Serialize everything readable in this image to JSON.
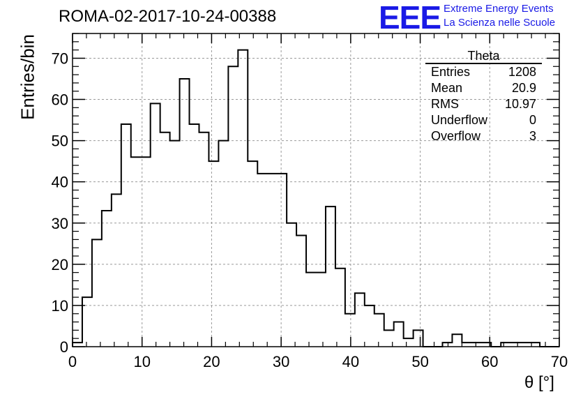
{
  "title": "ROMA-02-2017-10-24-00388",
  "logo": {
    "mark": "EEE",
    "line1": "Extreme Energy Events",
    "line2": "La Scienza nelle Scuole"
  },
  "stats": {
    "name": "Theta",
    "rows": [
      {
        "label": "Entries",
        "value": "1208"
      },
      {
        "label": "Mean",
        "value": "20.9"
      },
      {
        "label": "RMS",
        "value": "10.97"
      },
      {
        "label": "Underflow",
        "value": "0"
      },
      {
        "label": "Overflow",
        "value": "3"
      }
    ]
  },
  "chart_data": {
    "type": "histogram",
    "xlabel": "θ [°]",
    "ylabel": "Entries/bin",
    "xlim": [
      0,
      70
    ],
    "ylim": [
      0,
      76
    ],
    "grid": true,
    "bin_width": 1.4,
    "bin_start": 0,
    "x_ticks": [
      0,
      10,
      20,
      30,
      40,
      50,
      60,
      70
    ],
    "y_ticks": [
      0,
      10,
      20,
      30,
      40,
      50,
      60,
      70
    ],
    "values": [
      1,
      12,
      26,
      33,
      37,
      54,
      46,
      46,
      59,
      52,
      50,
      65,
      54,
      52,
      45,
      50,
      68,
      72,
      45,
      42,
      42,
      42,
      30,
      27,
      18,
      18,
      34,
      19,
      8,
      13,
      10,
      8,
      4,
      6,
      2,
      4,
      0,
      0,
      1,
      3,
      1,
      1,
      1,
      0,
      1,
      1,
      1,
      1,
      0,
      0
    ]
  }
}
